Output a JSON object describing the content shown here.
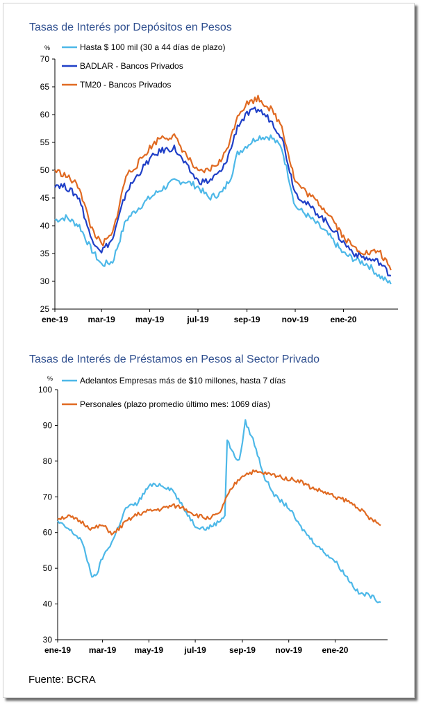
{
  "colors": {
    "hasta": "#4db8e8",
    "badlar": "#1f3fc7",
    "tm20": "#e06a22",
    "adelantos": "#4db8e8",
    "personales": "#e06a22",
    "title": "#2f4f8f"
  },
  "chart_data": [
    {
      "type": "line",
      "title": "Tasas de Interés por Depósitos en Pesos",
      "ylabel": "%",
      "ylim": [
        25,
        70
      ],
      "yticks": [
        25,
        30,
        35,
        40,
        45,
        50,
        55,
        60,
        65,
        70
      ],
      "xlim": [
        "2019-01-01",
        "2020-03-10"
      ],
      "xticks": [
        "ene-19",
        "mar-19",
        "may-19",
        "jul-19",
        "sep-19",
        "nov-19",
        "ene-20"
      ],
      "legend_position": "top-left",
      "series": [
        {
          "name": "Hasta $ 100 mil (30 a 44 días de plazo)",
          "color": "#4db8e8",
          "x": [
            "2019-01-01",
            "2019-01-15",
            "2019-02-01",
            "2019-02-15",
            "2019-03-01",
            "2019-03-15",
            "2019-04-01",
            "2019-04-15",
            "2019-05-01",
            "2019-05-15",
            "2019-06-01",
            "2019-06-15",
            "2019-07-01",
            "2019-07-15",
            "2019-08-01",
            "2019-08-12",
            "2019-08-20",
            "2019-09-01",
            "2019-09-15",
            "2019-10-01",
            "2019-10-15",
            "2019-10-25",
            "2019-11-01",
            "2019-11-15",
            "2019-12-01",
            "2019-12-15",
            "2020-01-01",
            "2020-01-15",
            "2020-02-01",
            "2020-02-15",
            "2020-03-01"
          ],
          "y": [
            41,
            41.5,
            40,
            36,
            33,
            33.5,
            41,
            43,
            45,
            46.5,
            48,
            48,
            47,
            45,
            46,
            49,
            53,
            54.5,
            56,
            56,
            54,
            48,
            43.5,
            42,
            40,
            38,
            35,
            34,
            33,
            31,
            29.5
          ]
        },
        {
          "name": "BADLAR - Bancos Privados",
          "color": "#1f3fc7",
          "x": [
            "2019-01-01",
            "2019-01-15",
            "2019-02-01",
            "2019-02-15",
            "2019-03-01",
            "2019-03-15",
            "2019-04-01",
            "2019-04-15",
            "2019-05-01",
            "2019-05-15",
            "2019-06-01",
            "2019-06-15",
            "2019-07-01",
            "2019-07-15",
            "2019-08-01",
            "2019-08-12",
            "2019-08-20",
            "2019-09-01",
            "2019-09-15",
            "2019-10-01",
            "2019-10-15",
            "2019-10-25",
            "2019-11-01",
            "2019-11-15",
            "2019-12-01",
            "2019-12-15",
            "2020-01-01",
            "2020-01-15",
            "2020-02-01",
            "2020-02-15",
            "2020-03-01"
          ],
          "y": [
            47.5,
            47,
            45,
            38,
            35.5,
            37.5,
            46,
            49,
            52,
            53.5,
            54,
            51,
            48,
            48,
            50,
            54,
            58,
            60,
            61,
            59,
            56,
            50,
            46,
            44,
            42,
            40,
            37,
            35,
            34,
            33.5,
            31
          ]
        },
        {
          "name": "TM20 - Bancos Privados",
          "color": "#e06a22",
          "x": [
            "2019-01-01",
            "2019-01-15",
            "2019-02-01",
            "2019-02-15",
            "2019-03-01",
            "2019-03-15",
            "2019-04-01",
            "2019-04-15",
            "2019-05-01",
            "2019-05-15",
            "2019-06-01",
            "2019-06-15",
            "2019-07-01",
            "2019-07-15",
            "2019-08-01",
            "2019-08-12",
            "2019-08-20",
            "2019-09-01",
            "2019-09-15",
            "2019-10-01",
            "2019-10-15",
            "2019-10-25",
            "2019-11-01",
            "2019-11-15",
            "2019-12-01",
            "2019-12-15",
            "2020-01-01",
            "2020-01-15",
            "2020-02-01",
            "2020-02-15",
            "2020-03-01"
          ],
          "y": [
            50,
            49,
            47,
            40,
            36.5,
            38.5,
            49,
            51,
            54,
            56,
            56,
            53,
            49.5,
            50,
            52,
            56,
            60,
            62,
            63,
            61,
            58,
            52,
            48,
            46,
            44,
            42,
            38,
            36,
            35,
            35.5,
            32
          ]
        }
      ]
    },
    {
      "type": "line",
      "title": "Tasas de Interés de Préstamos en Pesos al Sector Privado",
      "ylabel": "%",
      "ylim": [
        30,
        100
      ],
      "yticks": [
        30,
        40,
        50,
        60,
        70,
        80,
        90,
        100
      ],
      "xlim": [
        "2019-01-01",
        "2020-03-10"
      ],
      "xticks": [
        "ene-19",
        "mar-19",
        "may-19",
        "jul-19",
        "sep-19",
        "nov-19",
        "ene-20"
      ],
      "legend_position": "top-left",
      "series": [
        {
          "name": "Adelantos Empresas más de $10 millones, hasta 7 días",
          "color": "#4db8e8",
          "x": [
            "2019-01-01",
            "2019-01-15",
            "2019-02-01",
            "2019-02-15",
            "2019-02-20",
            "2019-03-01",
            "2019-03-15",
            "2019-04-01",
            "2019-04-15",
            "2019-05-01",
            "2019-05-15",
            "2019-06-01",
            "2019-06-15",
            "2019-07-01",
            "2019-07-15",
            "2019-08-01",
            "2019-08-09",
            "2019-08-12",
            "2019-08-20",
            "2019-08-28",
            "2019-09-05",
            "2019-09-15",
            "2019-10-01",
            "2019-10-15",
            "2019-11-01",
            "2019-11-15",
            "2019-12-01",
            "2019-12-15",
            "2020-01-01",
            "2020-01-15",
            "2020-02-01",
            "2020-02-15",
            "2020-03-01"
          ],
          "y": [
            63,
            61,
            58,
            48,
            47.5,
            53,
            58,
            67,
            68,
            73,
            73.5,
            72,
            67,
            62,
            61,
            63,
            65,
            86,
            82,
            80,
            91,
            86,
            75,
            70,
            67,
            62,
            58,
            55,
            52,
            48,
            43,
            42.5,
            40.5
          ]
        },
        {
          "name": "Personales (plazo promedio último mes: 1069 días)",
          "color": "#e06a22",
          "x": [
            "2019-01-01",
            "2019-01-15",
            "2019-02-01",
            "2019-02-15",
            "2019-03-01",
            "2019-03-15",
            "2019-04-01",
            "2019-04-15",
            "2019-05-01",
            "2019-05-15",
            "2019-06-01",
            "2019-06-15",
            "2019-07-01",
            "2019-07-15",
            "2019-08-01",
            "2019-08-12",
            "2019-08-20",
            "2019-09-01",
            "2019-09-15",
            "2019-10-01",
            "2019-10-15",
            "2019-11-01",
            "2019-11-15",
            "2019-12-01",
            "2019-12-15",
            "2020-01-01",
            "2020-01-15",
            "2020-02-01",
            "2020-02-15",
            "2020-03-01"
          ],
          "y": [
            64,
            64.5,
            63,
            61,
            62,
            59.5,
            63,
            65,
            66,
            66.5,
            67.5,
            67,
            65,
            64,
            65,
            70,
            73,
            76,
            77,
            76.5,
            76,
            75,
            74.5,
            72.5,
            71.5,
            70,
            69,
            67,
            64,
            62
          ]
        }
      ]
    }
  ],
  "footer": {
    "source": "Fuente: BCRA"
  }
}
